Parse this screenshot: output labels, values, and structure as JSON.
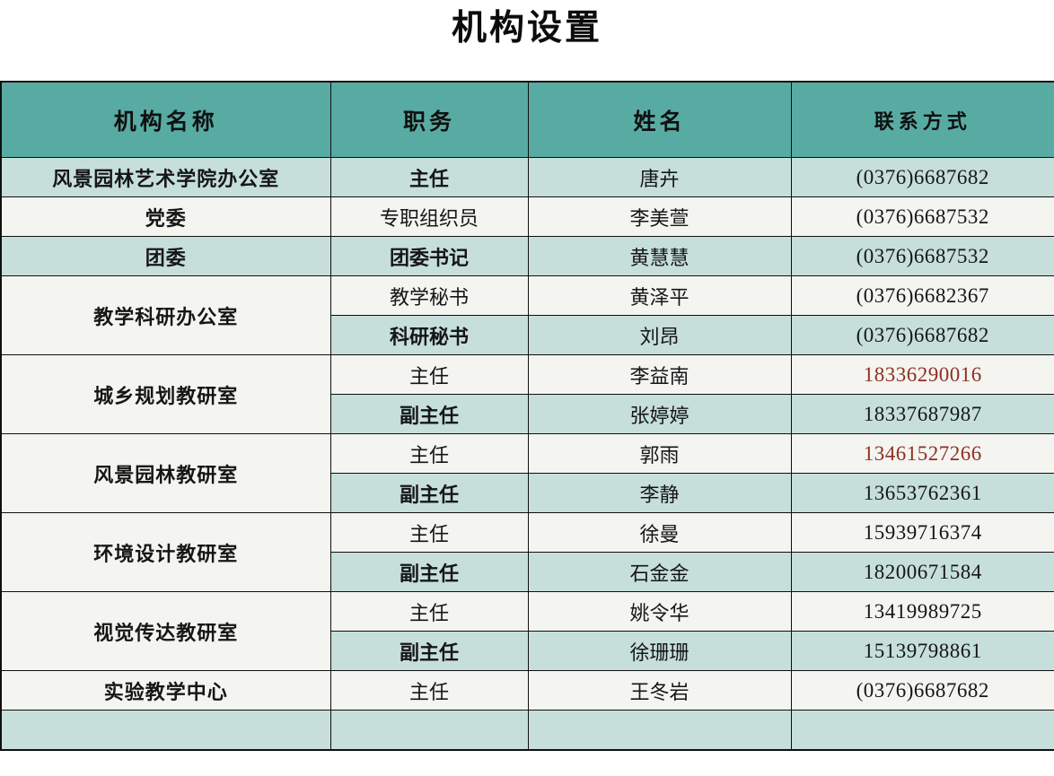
{
  "title": "机构设置",
  "colors": {
    "header_bg": "#58aba3",
    "row_green": "#c6dfda",
    "row_plain": "#f4f4f1",
    "phone_red": "#8f3020",
    "border": "#0f0f0f"
  },
  "table": {
    "headers": [
      "机构名称",
      "职务",
      "姓名",
      "联系方式"
    ],
    "groups": [
      {
        "org": "风景园林艺术学院办公室",
        "org_shade": "green",
        "entries": [
          {
            "position": "主任",
            "position_bold": true,
            "name": "唐卉",
            "phone": "(0376)6687682",
            "shade": "green",
            "phone_red": false
          }
        ]
      },
      {
        "org": "党委",
        "org_shade": "plain",
        "entries": [
          {
            "position": "专职组织员",
            "position_bold": false,
            "name": "李美萱",
            "phone": "(0376)6687532",
            "shade": "plain",
            "phone_red": false
          }
        ]
      },
      {
        "org": "团委",
        "org_shade": "green",
        "entries": [
          {
            "position": "团委书记",
            "position_bold": true,
            "name": "黄慧慧",
            "phone": "(0376)6687532",
            "shade": "green",
            "phone_red": false
          }
        ]
      },
      {
        "org": "教学科研办公室",
        "org_shade": "plain",
        "entries": [
          {
            "position": "教学秘书",
            "position_bold": false,
            "name": "黄泽平",
            "phone": "(0376)6682367",
            "shade": "plain",
            "phone_red": false
          },
          {
            "position": "科研秘书",
            "position_bold": true,
            "name": "刘昂",
            "phone": "(0376)6687682",
            "shade": "green",
            "phone_red": false
          }
        ]
      },
      {
        "org": "城乡规划教研室",
        "org_shade": "plain",
        "entries": [
          {
            "position": "主任",
            "position_bold": false,
            "name": "李益南",
            "phone": "18336290016",
            "shade": "plain",
            "phone_red": true
          },
          {
            "position": "副主任",
            "position_bold": true,
            "name": "张婷婷",
            "phone": "18337687987",
            "shade": "green",
            "phone_red": false
          }
        ]
      },
      {
        "org": "风景园林教研室",
        "org_shade": "plain",
        "entries": [
          {
            "position": "主任",
            "position_bold": false,
            "name": "郭雨",
            "phone": "13461527266",
            "shade": "plain",
            "phone_red": true
          },
          {
            "position": "副主任",
            "position_bold": true,
            "name": "李静",
            "phone": "13653762361",
            "shade": "green",
            "phone_red": false
          }
        ]
      },
      {
        "org": "环境设计教研室",
        "org_shade": "plain",
        "entries": [
          {
            "position": "主任",
            "position_bold": false,
            "name": "徐曼",
            "phone": "15939716374",
            "shade": "plain",
            "phone_red": false
          },
          {
            "position": "副主任",
            "position_bold": true,
            "name": "石金金",
            "phone": "18200671584",
            "shade": "green",
            "phone_red": false
          }
        ]
      },
      {
        "org": "视觉传达教研室",
        "org_shade": "plain",
        "entries": [
          {
            "position": "主任",
            "position_bold": false,
            "name": "姚令华",
            "phone": "13419989725",
            "shade": "plain",
            "phone_red": false
          },
          {
            "position": "副主任",
            "position_bold": true,
            "name": "徐珊珊",
            "phone": "15139798861",
            "shade": "green",
            "phone_red": false
          }
        ]
      },
      {
        "org": "实验教学中心",
        "org_shade": "plain",
        "entries": [
          {
            "position": "主任",
            "position_bold": false,
            "name": "王冬岩",
            "phone": "(0376)6687682",
            "shade": "plain",
            "phone_red": false
          }
        ]
      },
      {
        "org": "",
        "org_shade": "green",
        "entries": [
          {
            "position": "",
            "position_bold": false,
            "name": "",
            "phone": "",
            "shade": "green",
            "phone_red": false
          }
        ]
      }
    ]
  }
}
